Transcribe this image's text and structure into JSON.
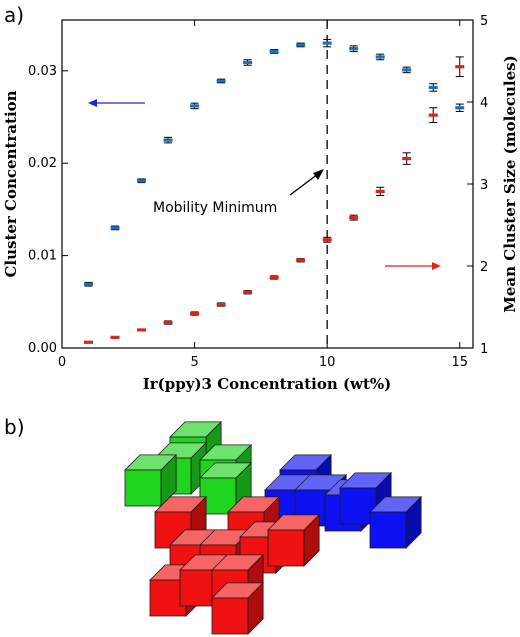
{
  "panel_a_label": "a)",
  "panel_b_label": "b)",
  "chart_data": {
    "type": "scatter",
    "title": "",
    "xlabel": "Ir(ppy)3 Concentration (wt%)",
    "ylabel_left": "Cluster Concentration",
    "ylabel_right": "Mean Cluster Size (molecules)",
    "xlim": [
      0,
      15.5
    ],
    "ylim_left": [
      0,
      0.0355
    ],
    "ylim_right": [
      1,
      5
    ],
    "x_ticks": [
      0,
      5,
      10,
      15
    ],
    "y_ticks_left": [
      "0.00",
      "0.01",
      "0.02",
      "0.03"
    ],
    "y_ticks_right": [
      "1",
      "2",
      "3",
      "4",
      "5"
    ],
    "annotation": "Mobility Minimum",
    "vline_x": 10,
    "series": [
      {
        "axis": "left",
        "color": "#1f6fb4",
        "x": [
          1,
          2,
          3,
          4,
          5,
          6,
          7,
          8,
          9,
          10,
          11,
          12,
          13,
          14,
          15
        ],
        "y": [
          0.0069,
          0.013,
          0.0181,
          0.0225,
          0.0262,
          0.0289,
          0.0309,
          0.0321,
          0.0328,
          0.033,
          0.0324,
          0.0315,
          0.0301,
          0.0282,
          0.026
        ],
        "err": [
          0.0002,
          0.0002,
          0.0002,
          0.0003,
          0.0003,
          0.0002,
          0.0003,
          0.0002,
          0.0002,
          0.0004,
          0.0003,
          0.0003,
          0.0003,
          0.0004,
          0.0004
        ]
      },
      {
        "axis": "right",
        "color": "#d9261c",
        "x": [
          1,
          2,
          3,
          4,
          5,
          6,
          7,
          8,
          9,
          10,
          11,
          12,
          13,
          14,
          15
        ],
        "y": [
          1.07,
          1.13,
          1.22,
          1.31,
          1.42,
          1.53,
          1.68,
          1.86,
          2.07,
          2.32,
          2.59,
          2.91,
          3.31,
          3.84,
          4.43
        ],
        "err": [
          0.01,
          0.01,
          0.01,
          0.02,
          0.02,
          0.02,
          0.02,
          0.02,
          0.02,
          0.03,
          0.03,
          0.05,
          0.07,
          0.09,
          0.12
        ]
      }
    ]
  },
  "cubes": {
    "green_color": "#1fd41f",
    "blue_color": "#0d10f0",
    "red_color": "#f01212"
  }
}
